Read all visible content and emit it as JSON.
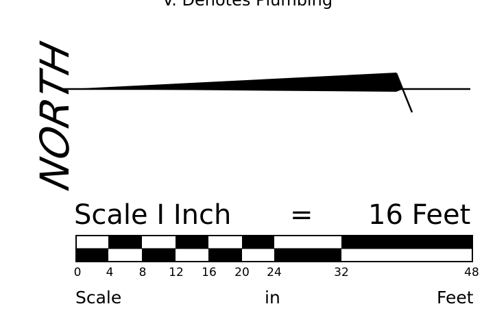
{
  "legend": {
    "text": "V. Denotes Plumbing"
  },
  "north_label": "NORTH",
  "scale": {
    "title_left": "Scale  I Inch",
    "title_equals": "=",
    "title_right": "16 Feet",
    "ticks": [
      "0",
      "4",
      "8",
      "12",
      "16",
      "20",
      "24",
      "32",
      "48"
    ],
    "footer_left": "Scale",
    "footer_center": "in",
    "footer_right": "Feet",
    "bar_color": "#000000",
    "background": "#ffffff"
  }
}
